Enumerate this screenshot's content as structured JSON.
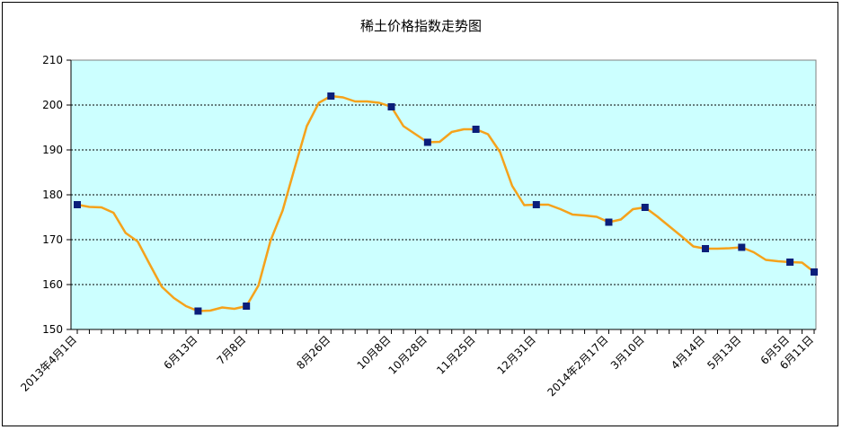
{
  "chart_data": {
    "type": "line",
    "title": "稀土价格指数走势图",
    "xlabel": "",
    "ylabel": "",
    "ylim": [
      150,
      210
    ],
    "yticks": [
      150,
      160,
      170,
      180,
      190,
      200,
      210
    ],
    "grid": true,
    "legend": "none",
    "colors": {
      "line": "#F5A21B",
      "marker": "#0B1E7A",
      "plot_bg": "#CCFFFF",
      "grid": "#000000"
    },
    "x_labels": [
      {
        "label": "2013年4月1日",
        "index": 0
      },
      {
        "label": "6月13日",
        "index": 10
      },
      {
        "label": "7月8日",
        "index": 14
      },
      {
        "label": "8月26日",
        "index": 21
      },
      {
        "label": "10月8日",
        "index": 26
      },
      {
        "label": "10月28日",
        "index": 29
      },
      {
        "label": "11月25日",
        "index": 33
      },
      {
        "label": "12月31日",
        "index": 38
      },
      {
        "label": "2014年2月17日",
        "index": 44
      },
      {
        "label": "3月10日",
        "index": 47
      },
      {
        "label": "4月14日",
        "index": 52
      },
      {
        "label": "5月13日",
        "index": 55
      },
      {
        "label": "6月5日",
        "index": 59
      },
      {
        "label": "6月11日",
        "index": 61
      }
    ],
    "series": [
      {
        "values": [
          177.8,
          177.3,
          177.2,
          176,
          171.5,
          169.6,
          164.5,
          159.5,
          157,
          155.2,
          154.1,
          154.2,
          154.9,
          154.6,
          155.2,
          159.8,
          169.8,
          176.5,
          186,
          195.3,
          200.5,
          202,
          201.7,
          200.8,
          200.8,
          200.5,
          199.6,
          195.3,
          193.5,
          191.7,
          191.8,
          194,
          194.6,
          194.6,
          193.5,
          189.5,
          182,
          177.7,
          177.8,
          177.8,
          176.8,
          175.6,
          175.4,
          175.1,
          173.9,
          174.5,
          176.8,
          177.2,
          175.2,
          173,
          170.8,
          168.5,
          168,
          168,
          168.1,
          168.3,
          167.2,
          165.5,
          165.2,
          165,
          164.9,
          162.8
        ],
        "marker_indices": [
          0,
          10,
          14,
          21,
          26,
          29,
          33,
          38,
          44,
          47,
          52,
          55,
          59,
          61
        ]
      }
    ]
  }
}
